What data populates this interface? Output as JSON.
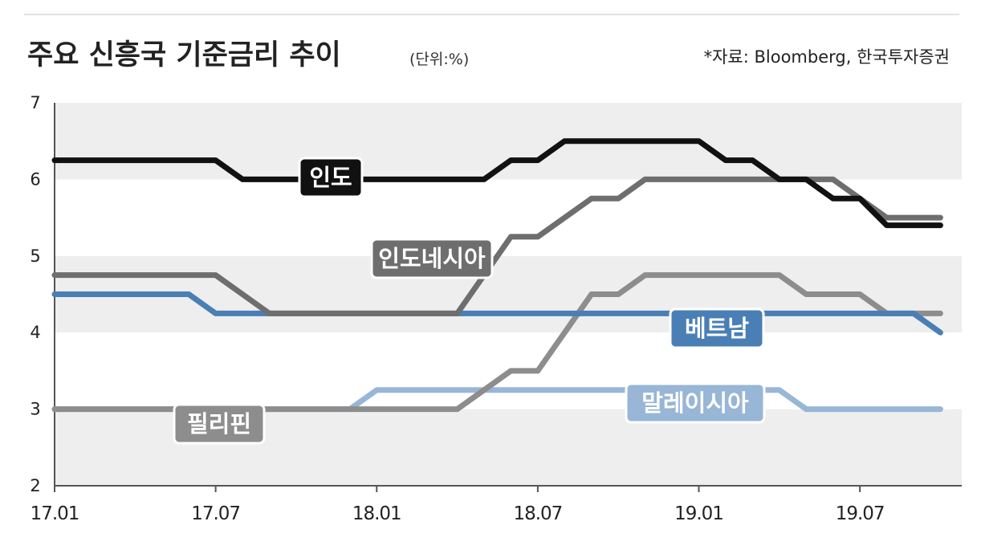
{
  "chart_data": {
    "type": "line",
    "title": "주요 신흥국 기준금리 추이",
    "unit_note": "(단위:%)",
    "source": "*자료: Bloomberg, 한국투자증권",
    "xlabel": "",
    "ylabel": "",
    "x_ticks": [
      "17.01",
      "17.07",
      "18.01",
      "18.07",
      "19.01",
      "19.07"
    ],
    "x_range": [
      "2017-01",
      "2019-10"
    ],
    "y_ticks": [
      "7",
      "6",
      "5",
      "4",
      "3",
      "2"
    ],
    "ylim": [
      2,
      7
    ],
    "grid": "alternating shaded bands",
    "legend": "inline labels",
    "series": [
      {
        "name": "인도",
        "color": "#111111",
        "points": [
          [
            "2017-01",
            6.25
          ],
          [
            "2017-07",
            6.25
          ],
          [
            "2017-08",
            6.0
          ],
          [
            "2018-05",
            6.0
          ],
          [
            "2018-06",
            6.25
          ],
          [
            "2018-07",
            6.25
          ],
          [
            "2018-08",
            6.5
          ],
          [
            "2019-01",
            6.5
          ],
          [
            "2019-02",
            6.25
          ],
          [
            "2019-03",
            6.25
          ],
          [
            "2019-04",
            6.0
          ],
          [
            "2019-05",
            6.0
          ],
          [
            "2019-06",
            5.75
          ],
          [
            "2019-07",
            5.75
          ],
          [
            "2019-08",
            5.4
          ],
          [
            "2019-10",
            5.4
          ]
        ]
      },
      {
        "name": "인도네시아",
        "color": "#6e6e6e",
        "points": [
          [
            "2017-01",
            4.75
          ],
          [
            "2017-07",
            4.75
          ],
          [
            "2017-09",
            4.25
          ],
          [
            "2018-04",
            4.25
          ],
          [
            "2018-06",
            5.25
          ],
          [
            "2018-07",
            5.25
          ],
          [
            "2018-09",
            5.75
          ],
          [
            "2018-10",
            5.75
          ],
          [
            "2018-11",
            6.0
          ],
          [
            "2019-06",
            6.0
          ],
          [
            "2019-08",
            5.5
          ],
          [
            "2019-10",
            5.5
          ]
        ]
      },
      {
        "name": "베트남",
        "color": "#4a7fb5",
        "points": [
          [
            "2017-01",
            4.5
          ],
          [
            "2017-06",
            4.5
          ],
          [
            "2017-07",
            4.25
          ],
          [
            "2019-09",
            4.25
          ],
          [
            "2019-10",
            4.0
          ]
        ]
      },
      {
        "name": "필리핀",
        "color": "#8d8d8d",
        "points": [
          [
            "2017-01",
            3.0
          ],
          [
            "2018-04",
            3.0
          ],
          [
            "2018-06",
            3.5
          ],
          [
            "2018-07",
            3.5
          ],
          [
            "2018-09",
            4.5
          ],
          [
            "2018-10",
            4.5
          ],
          [
            "2018-11",
            4.75
          ],
          [
            "2019-04",
            4.75
          ],
          [
            "2019-05",
            4.5
          ],
          [
            "2019-07",
            4.5
          ],
          [
            "2019-08",
            4.25
          ],
          [
            "2019-10",
            4.25
          ]
        ]
      },
      {
        "name": "말레이시아",
        "color": "#98b6d6",
        "points": [
          [
            "2017-01",
            3.0
          ],
          [
            "2017-12",
            3.0
          ],
          [
            "2018-01",
            3.25
          ],
          [
            "2019-04",
            3.25
          ],
          [
            "2019-05",
            3.0
          ],
          [
            "2019-10",
            3.0
          ]
        ]
      }
    ]
  }
}
